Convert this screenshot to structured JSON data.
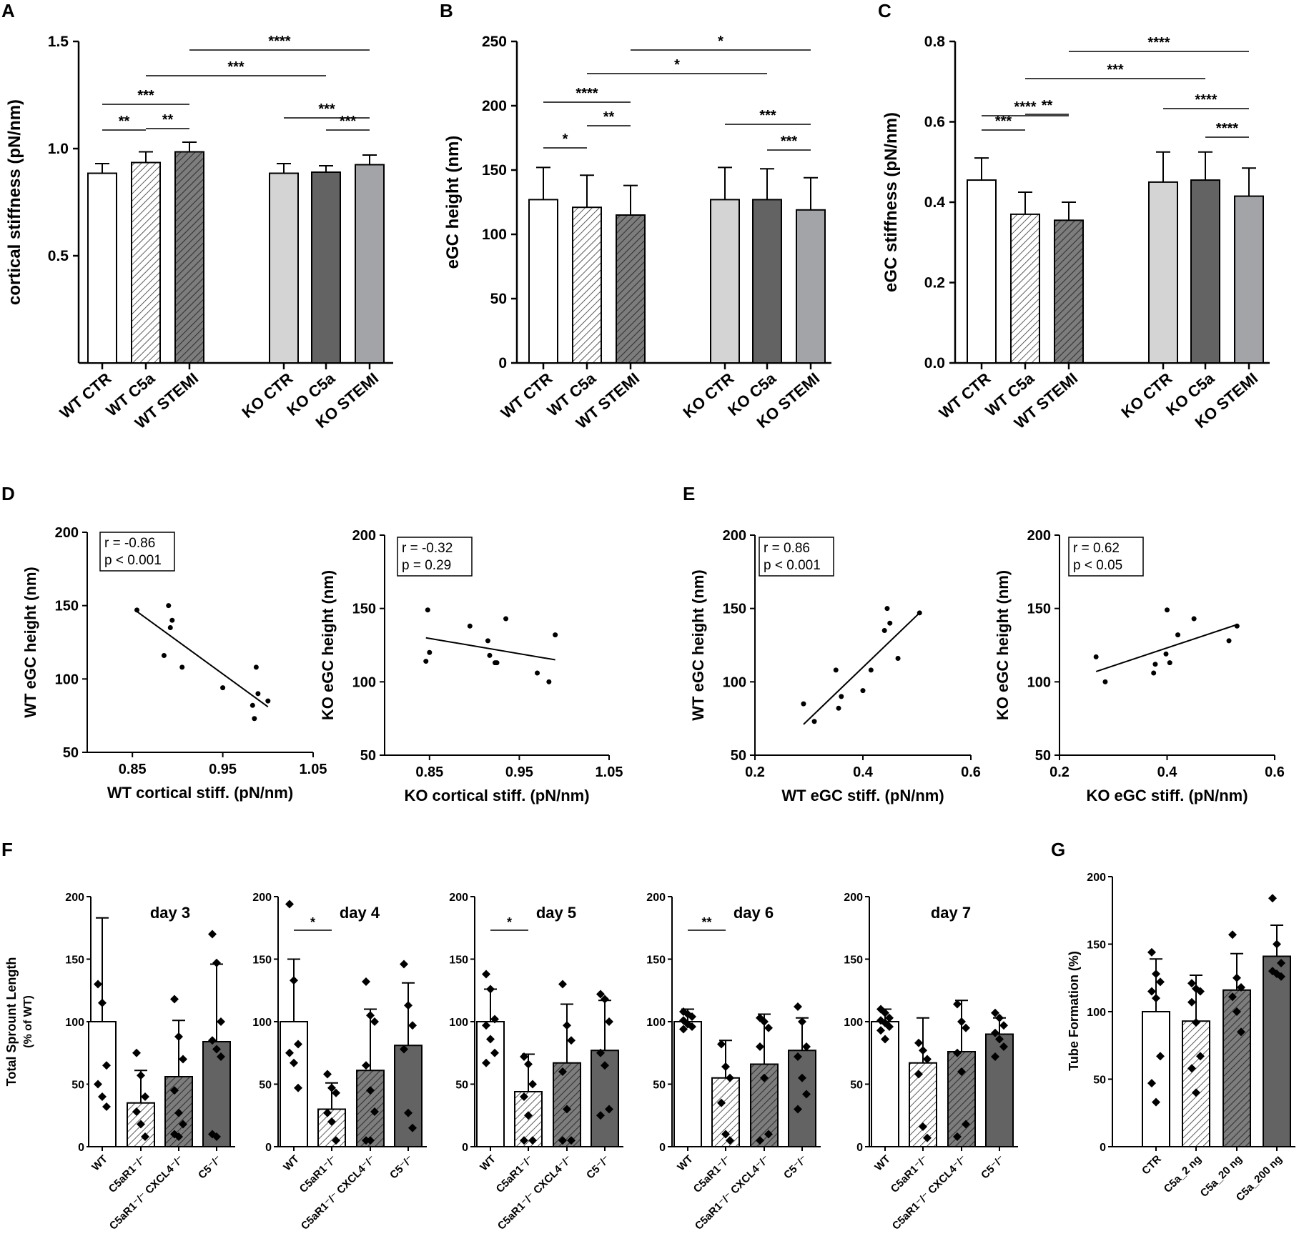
{
  "figure": {
    "panel_letters": [
      "A",
      "B",
      "C",
      "D",
      "E",
      "F",
      "G"
    ]
  },
  "chart_data": [
    {
      "id": "A",
      "type": "bar",
      "ylabel": "cortical stiffness (pN/nm)",
      "categories": [
        "WT CTR",
        "WT C5a",
        "WT STEMI",
        "KO CTR",
        "KO C5a",
        "KO STEMI"
      ],
      "values": [
        0.885,
        0.935,
        0.985,
        0.885,
        0.89,
        0.925
      ],
      "errors": [
        0.045,
        0.05,
        0.045,
        0.045,
        0.03,
        0.045
      ],
      "ylim": [
        0,
        1.5
      ],
      "yticks": [
        0.5,
        1.0,
        1.5
      ],
      "ytick_labels": [
        "0.5",
        "1.0",
        "1.5"
      ],
      "significance": [
        {
          "from": 0,
          "to": 1,
          "label": "**"
        },
        {
          "from": 1,
          "to": 2,
          "label": "**"
        },
        {
          "from": 0,
          "to": 2,
          "label": "***"
        },
        {
          "from": 1,
          "to": 4,
          "label": "***"
        },
        {
          "from": 2,
          "to": 5,
          "label": "****"
        },
        {
          "from": 3,
          "to": 5,
          "label": "***"
        },
        {
          "from": 4,
          "to": 5,
          "label": "***"
        }
      ]
    },
    {
      "id": "B",
      "type": "bar",
      "ylabel": "eGC height (nm)",
      "categories": [
        "WT CTR",
        "WT C5a",
        "WT STEMI",
        "KO CTR",
        "KO C5a",
        "KO STEMI"
      ],
      "values": [
        127,
        121,
        115,
        127,
        127,
        119
      ],
      "errors": [
        25,
        25,
        23,
        25,
        24,
        25
      ],
      "ylim": [
        0,
        250
      ],
      "yticks": [
        0,
        50,
        100,
        150,
        200,
        250
      ],
      "ytick_labels": [
        "0",
        "50",
        "100",
        "150",
        "200",
        "250"
      ],
      "significance": [
        {
          "from": 0,
          "to": 1,
          "label": "*"
        },
        {
          "from": 1,
          "to": 2,
          "label": "**"
        },
        {
          "from": 0,
          "to": 2,
          "label": "****"
        },
        {
          "from": 1,
          "to": 4,
          "label": "*"
        },
        {
          "from": 2,
          "to": 5,
          "label": "*"
        },
        {
          "from": 3,
          "to": 5,
          "label": "***"
        },
        {
          "from": 4,
          "to": 5,
          "label": "***"
        }
      ]
    },
    {
      "id": "C",
      "type": "bar",
      "ylabel": "eGC stiffness (pN/nm)",
      "categories": [
        "WT CTR",
        "WT C5a",
        "WT STEMI",
        "KO CTR",
        "KO C5a",
        "KO STEMI"
      ],
      "values": [
        0.455,
        0.37,
        0.355,
        0.45,
        0.455,
        0.415
      ],
      "errors": [
        0.055,
        0.055,
        0.045,
        0.075,
        0.07,
        0.07
      ],
      "ylim": [
        0,
        0.8
      ],
      "yticks": [
        0.0,
        0.2,
        0.4,
        0.6,
        0.8
      ],
      "ytick_labels": [
        "0.0",
        "0.2",
        "0.4",
        "0.6",
        "0.8"
      ],
      "significance": [
        {
          "from": 0,
          "to": 1,
          "label": "***"
        },
        {
          "from": 1,
          "to": 2,
          "label": "**"
        },
        {
          "from": 0,
          "to": 2,
          "label": "****"
        },
        {
          "from": 1,
          "to": 4,
          "label": "***"
        },
        {
          "from": 2,
          "to": 5,
          "label": "****"
        },
        {
          "from": 3,
          "to": 5,
          "label": "****"
        },
        {
          "from": 4,
          "to": 5,
          "label": "****"
        }
      ]
    },
    {
      "id": "D1",
      "type": "scatter",
      "xlabel": "WT cortical stiff. (pN/nm)",
      "ylabel": "WT eGC height (nm)",
      "xlim": [
        0.8,
        1.05
      ],
      "ylim": [
        50,
        200
      ],
      "xticks": [
        0.85,
        0.95,
        1.05
      ],
      "xtick_labels": [
        "0.85",
        "0.95",
        "1.05"
      ],
      "yticks": [
        50,
        100,
        150,
        200
      ],
      "ytick_labels": [
        "50",
        "100",
        "150",
        "200"
      ],
      "stats": [
        "r = -0.86",
        "p < 0.001"
      ],
      "points": [
        [
          0.855,
          147
        ],
        [
          0.885,
          116
        ],
        [
          0.89,
          150
        ],
        [
          0.892,
          135
        ],
        [
          0.894,
          140
        ],
        [
          0.905,
          108
        ],
        [
          0.95,
          94
        ],
        [
          0.983,
          82
        ],
        [
          0.985,
          73
        ],
        [
          0.987,
          108
        ],
        [
          0.989,
          90
        ],
        [
          1.0,
          85
        ]
      ],
      "fit": [
        [
          0.855,
          146
        ],
        [
          1.0,
          81
        ]
      ]
    },
    {
      "id": "D2",
      "type": "scatter",
      "xlabel": "KO cortical stiff. (pN/nm)",
      "ylabel": "KO eGC height (nm)",
      "xlim": [
        0.8,
        1.05
      ],
      "ylim": [
        50,
        200
      ],
      "xticks": [
        0.85,
        0.95,
        1.05
      ],
      "xtick_labels": [
        "0.85",
        "0.95",
        "1.05"
      ],
      "yticks": [
        50,
        100,
        150,
        200
      ],
      "ytick_labels": [
        "50",
        "100",
        "150",
        "200"
      ],
      "stats": [
        "r = -0.32",
        "p = 0.29"
      ],
      "points": [
        [
          0.846,
          114
        ],
        [
          0.848,
          149
        ],
        [
          0.85,
          120
        ],
        [
          0.895,
          138
        ],
        [
          0.915,
          128
        ],
        [
          0.917,
          118
        ],
        [
          0.923,
          113
        ],
        [
          0.925,
          113
        ],
        [
          0.935,
          143
        ],
        [
          0.97,
          106
        ],
        [
          0.983,
          100
        ],
        [
          0.99,
          132
        ]
      ],
      "fit": [
        [
          0.846,
          130
        ],
        [
          0.99,
          115
        ]
      ]
    },
    {
      "id": "E1",
      "type": "scatter",
      "xlabel": "WT eGC stiff. (pN/nm)",
      "ylabel": "WT eGC height (nm)",
      "xlim": [
        0.2,
        0.6
      ],
      "ylim": [
        50,
        200
      ],
      "xticks": [
        0.2,
        0.4,
        0.6
      ],
      "xtick_labels": [
        "0.2",
        "0.4",
        "0.6"
      ],
      "yticks": [
        50,
        100,
        150,
        200
      ],
      "ytick_labels": [
        "50",
        "100",
        "150",
        "200"
      ],
      "stats": [
        "r = 0.86",
        "p < 0.001"
      ],
      "points": [
        [
          0.29,
          85
        ],
        [
          0.31,
          73
        ],
        [
          0.35,
          108
        ],
        [
          0.355,
          82
        ],
        [
          0.36,
          90
        ],
        [
          0.4,
          94
        ],
        [
          0.415,
          108
        ],
        [
          0.44,
          135
        ],
        [
          0.445,
          150
        ],
        [
          0.45,
          140
        ],
        [
          0.465,
          116
        ],
        [
          0.505,
          147
        ]
      ],
      "fit": [
        [
          0.29,
          71
        ],
        [
          0.505,
          147
        ]
      ]
    },
    {
      "id": "E2",
      "type": "scatter",
      "xlabel": "KO eGC stiff. (pN/nm)",
      "ylabel": "KO eGC height (nm)",
      "xlim": [
        0.2,
        0.6
      ],
      "ylim": [
        50,
        200
      ],
      "xticks": [
        0.2,
        0.4,
        0.6
      ],
      "xtick_labels": [
        "0.2",
        "0.4",
        "0.6"
      ],
      "yticks": [
        50,
        100,
        150,
        200
      ],
      "ytick_labels": [
        "50",
        "100",
        "150",
        "200"
      ],
      "stats": [
        "r = 0.62",
        "p < 0.05"
      ],
      "points": [
        [
          0.268,
          117
        ],
        [
          0.285,
          100
        ],
        [
          0.375,
          106
        ],
        [
          0.378,
          112
        ],
        [
          0.398,
          119
        ],
        [
          0.4,
          149
        ],
        [
          0.405,
          113
        ],
        [
          0.42,
          132
        ],
        [
          0.45,
          143
        ],
        [
          0.515,
          128
        ],
        [
          0.53,
          138
        ]
      ],
      "fit": [
        [
          0.268,
          107
        ],
        [
          0.53,
          139
        ]
      ]
    },
    {
      "id": "F3",
      "type": "bar",
      "title": "day 3",
      "categories": [
        "WT",
        "C5aR1⁻/⁻",
        "C5aR1⁻/⁻ CXCL4⁻/⁻",
        "C5⁻/⁻"
      ],
      "values": [
        100,
        35,
        56,
        84
      ],
      "errors": [
        83,
        26,
        45,
        62
      ],
      "points": [
        [
          130,
          115,
          65,
          50,
          40,
          32
        ],
        [
          75,
          57,
          40,
          28,
          18,
          8
        ],
        [
          118,
          88,
          70,
          45,
          27,
          18,
          10,
          8
        ],
        [
          170,
          147,
          100,
          85,
          78,
          72,
          10,
          8
        ]
      ],
      "ylim": [
        0,
        200
      ],
      "yticks": [
        0,
        50,
        100,
        150,
        200
      ],
      "ytick_labels": [
        "0",
        "50",
        "100",
        "150",
        "200"
      ],
      "ylabel": "Total Sprount Length",
      "ylabel2": "(% of WT)",
      "significance": []
    },
    {
      "id": "F4",
      "type": "bar",
      "title": "day 4",
      "categories": [
        "WT",
        "C5aR1⁻/⁻",
        "C5aR1⁻/⁻ CXCL4⁻/⁻",
        "C5⁻/⁻"
      ],
      "values": [
        100,
        30,
        61,
        81
      ],
      "errors": [
        50,
        21,
        49,
        50
      ],
      "points": [
        [
          194,
          133,
          82,
          75,
          67,
          47
        ],
        [
          58,
          47,
          43,
          27,
          20,
          5
        ],
        [
          132,
          105,
          100,
          65,
          45,
          28,
          5,
          5
        ],
        [
          146,
          113,
          97,
          78,
          27,
          15
        ]
      ],
      "ylim": [
        0,
        200
      ],
      "yticks": [
        0,
        50,
        100,
        150,
        200
      ],
      "ytick_labels": [
        "0",
        "50",
        "100",
        "150",
        "200"
      ],
      "significance": [
        {
          "from": 0,
          "to": 1,
          "label": "*"
        }
      ]
    },
    {
      "id": "F5",
      "type": "bar",
      "title": "day 5",
      "categories": [
        "WT",
        "C5aR1⁻/⁻",
        "C5aR1⁻/⁻ CXCL4⁻/⁻",
        "C5⁻/⁻"
      ],
      "values": [
        100,
        44,
        67,
        77
      ],
      "errors": [
        26,
        30,
        47,
        40
      ],
      "points": [
        [
          138,
          126,
          102,
          97,
          86,
          75,
          67
        ],
        [
          72,
          66,
          50,
          40,
          25,
          5,
          5
        ],
        [
          130,
          97,
          85,
          60,
          30,
          5,
          5
        ],
        [
          122,
          118,
          100,
          75,
          65,
          30,
          25
        ]
      ],
      "ylim": [
        0,
        200
      ],
      "yticks": [
        0,
        50,
        100,
        150,
        200
      ],
      "ytick_labels": [
        "0",
        "50",
        "100",
        "150",
        "200"
      ],
      "significance": [
        {
          "from": 0,
          "to": 1,
          "label": "*"
        }
      ]
    },
    {
      "id": "F6",
      "type": "bar",
      "title": "day 6",
      "categories": [
        "WT",
        "C5aR1⁻/⁻",
        "C5aR1⁻/⁻ CXCL4⁻/⁻",
        "C5⁻/⁻"
      ],
      "values": [
        100,
        55,
        66,
        77
      ],
      "errors": [
        10,
        30,
        40,
        26
      ],
      "points": [
        [
          108,
          106,
          104,
          101,
          98,
          96,
          94
        ],
        [
          82,
          64,
          55,
          35,
          10,
          5
        ],
        [
          103,
          100,
          95,
          80,
          55,
          10,
          5
        ],
        [
          112,
          100,
          80,
          72,
          55,
          42,
          30
        ]
      ],
      "ylim": [
        0,
        200
      ],
      "yticks": [
        0,
        50,
        100,
        150,
        200
      ],
      "ytick_labels": [
        "0",
        "50",
        "100",
        "150",
        "200"
      ],
      "significance": [
        {
          "from": 0,
          "to": 1,
          "label": "**"
        }
      ]
    },
    {
      "id": "F7",
      "type": "bar",
      "title": "day 7",
      "categories": [
        "WT",
        "C5aR1⁻/⁻",
        "C5aR1⁻/⁻ CXCL4⁻/⁻",
        "C5⁻/⁻"
      ],
      "values": [
        100,
        67,
        76,
        90
      ],
      "errors": [
        10,
        36,
        41,
        13
      ],
      "points": [
        [
          110,
          107,
          103,
          101,
          99,
          96,
          93,
          86
        ],
        [
          83,
          77,
          70,
          58,
          16,
          7
        ],
        [
          114,
          100,
          95,
          75,
          60,
          18,
          8
        ],
        [
          107,
          103,
          97,
          91,
          86,
          80,
          72
        ]
      ],
      "ylim": [
        0,
        200
      ],
      "yticks": [
        0,
        50,
        100,
        150,
        200
      ],
      "ytick_labels": [
        "0",
        "50",
        "100",
        "150",
        "200"
      ],
      "significance": []
    },
    {
      "id": "G",
      "type": "bar",
      "categories": [
        "CTR",
        "C5a_2 ng",
        "C5a_20 ng",
        "C5a_200 ng"
      ],
      "values": [
        100,
        93,
        116,
        141
      ],
      "errors": [
        39,
        34,
        27,
        23
      ],
      "points": [
        [
          144,
          128,
          122,
          115,
          110,
          67,
          47,
          33
        ],
        [
          121,
          117,
          115,
          107,
          92,
          67,
          58,
          40
        ],
        [
          157,
          125,
          118,
          111,
          100,
          85
        ],
        [
          184,
          150,
          136,
          130,
          128,
          126
        ]
      ],
      "ylim": [
        0,
        200
      ],
      "yticks": [
        0,
        50,
        100,
        150,
        200
      ],
      "ytick_labels": [
        "0",
        "50",
        "100",
        "150",
        "200"
      ],
      "ylabel": "Tube Formation (%)",
      "significance": []
    }
  ]
}
